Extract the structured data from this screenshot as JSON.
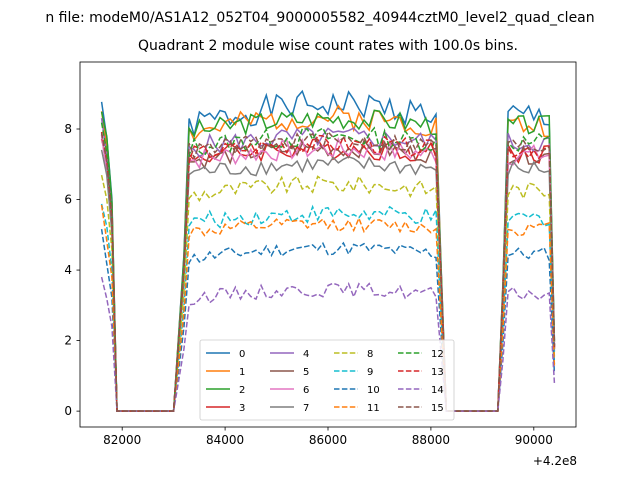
{
  "figure": {
    "suptitle": "n file: modeM0/AS1A12_052T04_9000005582_40944cztM0_level2_quad_clean",
    "title": "Quadrant 2 module wise count rates with 100.0s bins.",
    "offset_label": "+4.2e8"
  },
  "chart_data": {
    "type": "line",
    "title": "Quadrant 2 module wise count rates with 100.0s bins.",
    "xlabel": "",
    "ylabel": "",
    "x_offset": 420000000,
    "xlim": [
      81180,
      90820
    ],
    "ylim": [
      -0.45,
      9.9
    ],
    "x_ticks": [
      82000,
      84000,
      86000,
      88000,
      90000
    ],
    "x_tick_labels": [
      "82000",
      "84000",
      "86000",
      "88000",
      "90000"
    ],
    "y_ticks": [
      0,
      2,
      4,
      6,
      8
    ],
    "y_tick_labels": [
      "0",
      "2",
      "4",
      "6",
      "8"
    ],
    "grid": false,
    "legend": {
      "placement": "lower center",
      "columns": 4
    },
    "segments": [
      {
        "x_start": 81600,
        "x_end": 82000,
        "n": 5
      },
      {
        "x_start": 82100,
        "x_end": 83000,
        "n": 10
      },
      {
        "x_start": 83200,
        "x_end": 88200,
        "n": 51
      },
      {
        "x_start": 88300,
        "x_end": 89300,
        "n": 11
      },
      {
        "x_start": 89400,
        "x_end": 90400,
        "n": 11
      }
    ],
    "series": [
      {
        "name": "0",
        "color": "#1f77b4",
        "dash": "solid",
        "level": 8.05,
        "amp": 0.4,
        "trend": 0.8,
        "seed": 1
      },
      {
        "name": "1",
        "color": "#ff7f0e",
        "dash": "solid",
        "level": 7.85,
        "amp": 0.35,
        "trend": 0.6,
        "seed": 2
      },
      {
        "name": "2",
        "color": "#2ca02c",
        "dash": "solid",
        "level": 7.9,
        "amp": 0.3,
        "trend": 0.5,
        "seed": 3
      },
      {
        "name": "3",
        "color": "#d62728",
        "dash": "solid",
        "level": 7.2,
        "amp": 0.3,
        "trend": 0.3,
        "seed": 4
      },
      {
        "name": "4",
        "color": "#9467bd",
        "dash": "solid",
        "level": 7.45,
        "amp": 0.3,
        "trend": 0.4,
        "seed": 5
      },
      {
        "name": "5",
        "color": "#8c564b",
        "dash": "solid",
        "level": 7.05,
        "amp": 0.25,
        "trend": 0.5,
        "seed": 6
      },
      {
        "name": "6",
        "color": "#e377c2",
        "dash": "solid",
        "level": 7.1,
        "amp": 0.3,
        "trend": 0.4,
        "seed": 7
      },
      {
        "name": "7",
        "color": "#7f7f7f",
        "dash": "solid",
        "level": 6.75,
        "amp": 0.25,
        "trend": 0.3,
        "seed": 8
      },
      {
        "name": "8",
        "color": "#bcbd22",
        "dash": "dashed",
        "level": 6.1,
        "amp": 0.25,
        "trend": 0.4,
        "seed": 9
      },
      {
        "name": "9",
        "color": "#17becf",
        "dash": "dashed",
        "level": 5.35,
        "amp": 0.25,
        "trend": 0.3,
        "seed": 10
      },
      {
        "name": "10",
        "color": "#1f77b4",
        "dash": "dashed",
        "level": 4.3,
        "amp": 0.2,
        "trend": 0.4,
        "seed": 11
      },
      {
        "name": "11",
        "color": "#ff7f0e",
        "dash": "dashed",
        "level": 5.05,
        "amp": 0.2,
        "trend": 0.3,
        "seed": 12
      },
      {
        "name": "12",
        "color": "#2ca02c",
        "dash": "dashed",
        "level": 7.45,
        "amp": 0.3,
        "trend": 0.4,
        "seed": 13
      },
      {
        "name": "13",
        "color": "#d62728",
        "dash": "dashed",
        "level": 7.25,
        "amp": 0.25,
        "trend": 0.4,
        "seed": 14
      },
      {
        "name": "14",
        "color": "#9467bd",
        "dash": "dashed",
        "level": 3.2,
        "amp": 0.2,
        "trend": 0.3,
        "seed": 15
      },
      {
        "name": "15",
        "color": "#8c564b",
        "dash": "dashed",
        "level": 7.35,
        "amp": 0.25,
        "trend": 0.4,
        "seed": 16
      }
    ]
  }
}
